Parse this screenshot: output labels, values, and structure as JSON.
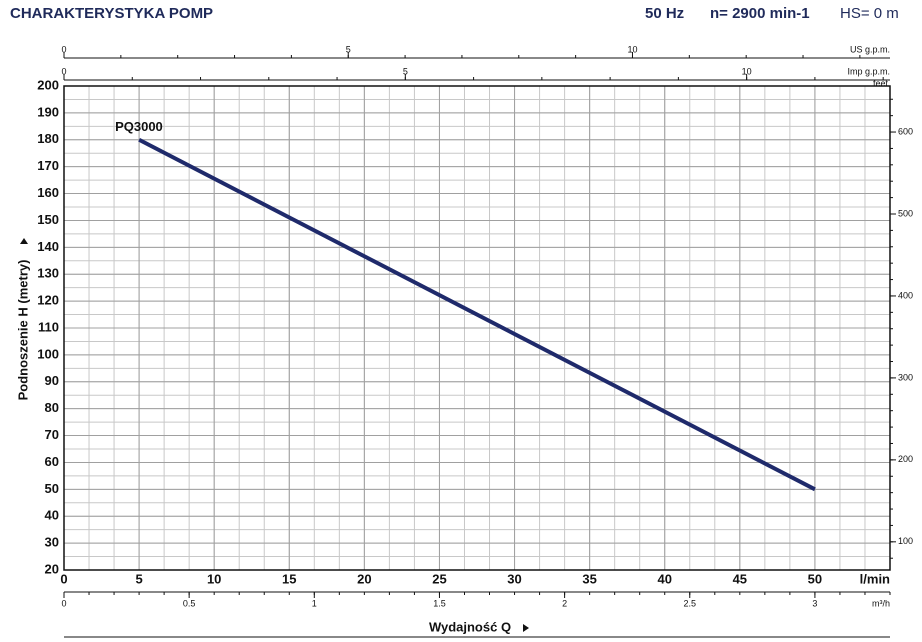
{
  "chart_data": {
    "type": "line",
    "title": "CHARAKTERYSTYKA POMP",
    "subtitle": [
      "50 Hz",
      "n= 2900 min-1",
      "HS= 0 m"
    ],
    "x_label": "Wydajność Q",
    "x_unit": "l/min",
    "y_label": "Podnoszenie H (metry)",
    "y2_label": "feet",
    "x": [
      5,
      50
    ],
    "series": [
      {
        "name": "PQ3000",
        "color": "#1f2a6b",
        "values": [
          180,
          50
        ]
      }
    ],
    "xlim": [
      0,
      55
    ],
    "xticks": [
      0,
      5,
      10,
      15,
      20,
      25,
      30,
      35,
      40,
      45,
      50
    ],
    "ylim": [
      20,
      200
    ],
    "yticks": [
      20,
      30,
      40,
      50,
      60,
      70,
      80,
      90,
      100,
      110,
      120,
      130,
      140,
      150,
      160,
      170,
      180,
      190,
      200
    ],
    "y2lim": [
      65.62,
      656.17
    ],
    "y2ticks": [
      100,
      200,
      300,
      400,
      500,
      600
    ],
    "secondary_x_axes": [
      {
        "label": "US g.p.m.",
        "xlim": [
          0,
          14.53
        ],
        "xticks": [
          0,
          5,
          10
        ]
      },
      {
        "label": "Imp g.p.m.",
        "xlim": [
          0,
          12.1
        ],
        "xticks": [
          0,
          5,
          10
        ]
      },
      {
        "label": "m³/h",
        "xlim": [
          0,
          3.3
        ],
        "xticks": [
          0,
          0.5,
          1,
          1.5,
          2,
          2.5,
          3
        ]
      }
    ],
    "grid": true
  }
}
